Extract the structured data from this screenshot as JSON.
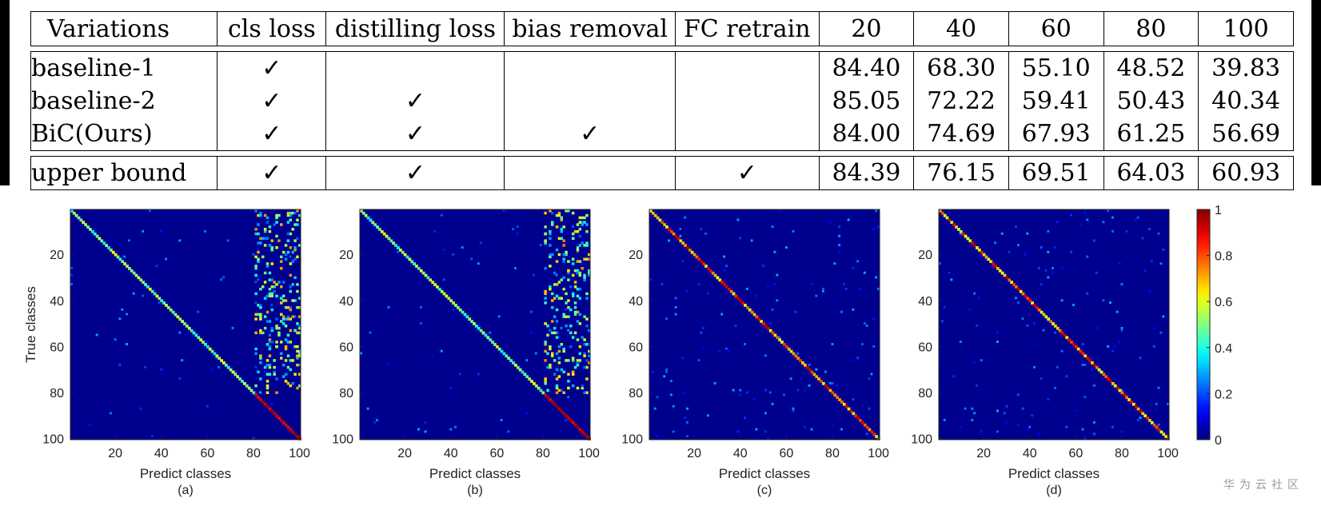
{
  "table": {
    "headers": [
      "Variations",
      "cls loss",
      "distilling loss",
      "bias removal",
      "FC retrain",
      "20",
      "40",
      "60",
      "80",
      "100"
    ],
    "check_mark": "✓",
    "rows": [
      {
        "name": "baseline-1",
        "checks": [
          true,
          false,
          false,
          false
        ],
        "values": [
          "84.40",
          "68.30",
          "55.10",
          "48.52",
          "39.83"
        ],
        "bold": [
          false,
          false,
          false,
          false,
          false
        ]
      },
      {
        "name": "baseline-2",
        "checks": [
          true,
          true,
          false,
          false
        ],
        "values": [
          "85.05",
          "72.22",
          "59.41",
          "50.43",
          "40.34"
        ],
        "bold": [
          true,
          false,
          false,
          false,
          false
        ]
      },
      {
        "name": "BiC(Ours)",
        "checks": [
          true,
          true,
          true,
          false
        ],
        "values": [
          "84.00",
          "74.69",
          "67.93",
          "61.25",
          "56.69"
        ],
        "bold": [
          false,
          true,
          true,
          true,
          true
        ]
      },
      {
        "name": "upper bound",
        "checks": [
          true,
          true,
          false,
          true
        ],
        "values": [
          "84.39",
          "76.15",
          "69.51",
          "64.03",
          "60.93"
        ],
        "bold": [
          false,
          false,
          false,
          false,
          false
        ]
      }
    ]
  },
  "plots": {
    "ylabel": "True classes",
    "xlabel": "Predict classes",
    "ticks": [
      "20",
      "40",
      "60",
      "80",
      "100"
    ],
    "panels": [
      {
        "caption": "(a)",
        "variant": "a"
      },
      {
        "caption": "(b)",
        "variant": "b"
      },
      {
        "caption": "(c)",
        "variant": "c"
      },
      {
        "caption": "(d)",
        "variant": "d"
      }
    ],
    "colorbar": {
      "ticks": [
        "1",
        "0.8",
        "0.6",
        "0.4",
        "0.2",
        "0"
      ]
    },
    "colors": {
      "background": "#00008f",
      "axis": "#222222"
    }
  },
  "watermark": "华为云社区"
}
